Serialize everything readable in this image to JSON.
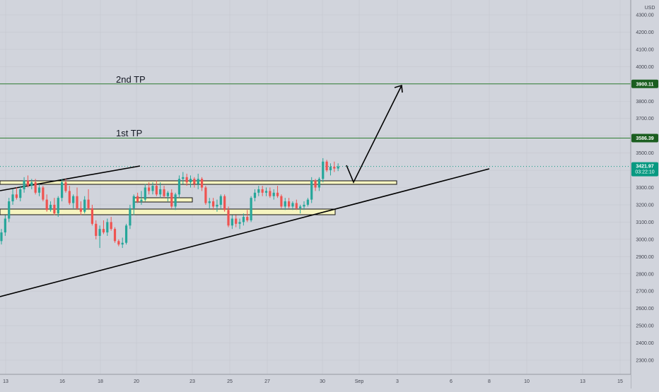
{
  "currency_label": "USD",
  "price_axis": {
    "ticks": [
      "4300.00",
      "4200.00",
      "4100.00",
      "4000.00",
      "3900.00",
      "3800.00",
      "3700.00",
      "3600.00",
      "3500.00",
      "3400.00",
      "3300.00",
      "3200.00",
      "3100.00",
      "3000.00",
      "2900.00",
      "2800.00",
      "2700.00",
      "2600.00",
      "2500.00",
      "2400.00",
      "2300.00"
    ]
  },
  "time_axis": {
    "labels": [
      "13",
      "16",
      "18",
      "20",
      "23",
      "25",
      "27",
      "30",
      "Sep",
      "3",
      "6",
      "8",
      "10",
      "13",
      "15"
    ]
  },
  "annotations": {
    "second_tp_label": "2nd TP",
    "first_tp_label": "1st TP"
  },
  "price_badges": {
    "second_tp_price": "3900.11",
    "first_tp_price": "3586.39",
    "last_price": "3421.97",
    "countdown": "03:22:10"
  },
  "colors": {
    "background": "#d1d4dc",
    "bull": "#26a69a",
    "bear": "#ef5350",
    "zone_fill": "#f6f4c0",
    "target_line": "#2e7d32",
    "badge_bg": "#1b5e20",
    "last_price_bg": "#089981"
  },
  "chart_data": {
    "type": "candlestick",
    "ylim": [
      2250,
      4370
    ],
    "horizontal_levels": [
      {
        "label": "2nd TP",
        "price": 3900.11
      },
      {
        "label": "1st TP",
        "price": 3586.39
      }
    ],
    "last_price": 3421.97,
    "candles": [
      {
        "o": 2990,
        "h": 3060,
        "l": 2970,
        "c": 3040
      },
      {
        "o": 3040,
        "h": 3140,
        "l": 3020,
        "c": 3120
      },
      {
        "o": 3120,
        "h": 3240,
        "l": 3100,
        "c": 3220
      },
      {
        "o": 3220,
        "h": 3290,
        "l": 3200,
        "c": 3260
      },
      {
        "o": 3260,
        "h": 3300,
        "l": 3230,
        "c": 3240
      },
      {
        "o": 3240,
        "h": 3310,
        "l": 3220,
        "c": 3290
      },
      {
        "o": 3290,
        "h": 3360,
        "l": 3270,
        "c": 3340
      },
      {
        "o": 3340,
        "h": 3370,
        "l": 3300,
        "c": 3310
      },
      {
        "o": 3310,
        "h": 3350,
        "l": 3290,
        "c": 3330
      },
      {
        "o": 3330,
        "h": 3350,
        "l": 3260,
        "c": 3270
      },
      {
        "o": 3270,
        "h": 3320,
        "l": 3250,
        "c": 3300
      },
      {
        "o": 3300,
        "h": 3310,
        "l": 3220,
        "c": 3230
      },
      {
        "o": 3230,
        "h": 3260,
        "l": 3160,
        "c": 3170
      },
      {
        "o": 3170,
        "h": 3220,
        "l": 3160,
        "c": 3200
      },
      {
        "o": 3200,
        "h": 3240,
        "l": 3140,
        "c": 3150
      },
      {
        "o": 3150,
        "h": 3250,
        "l": 3130,
        "c": 3240
      },
      {
        "o": 3240,
        "h": 3350,
        "l": 3220,
        "c": 3330
      },
      {
        "o": 3330,
        "h": 3350,
        "l": 3270,
        "c": 3280
      },
      {
        "o": 3280,
        "h": 3310,
        "l": 3200,
        "c": 3210
      },
      {
        "o": 3210,
        "h": 3260,
        "l": 3180,
        "c": 3250
      },
      {
        "o": 3250,
        "h": 3300,
        "l": 3170,
        "c": 3180
      },
      {
        "o": 3180,
        "h": 3220,
        "l": 3140,
        "c": 3160
      },
      {
        "o": 3160,
        "h": 3250,
        "l": 3150,
        "c": 3230
      },
      {
        "o": 3230,
        "h": 3290,
        "l": 3170,
        "c": 3180
      },
      {
        "o": 3180,
        "h": 3200,
        "l": 3080,
        "c": 3090
      },
      {
        "o": 3090,
        "h": 3110,
        "l": 3000,
        "c": 3020
      },
      {
        "o": 3020,
        "h": 3080,
        "l": 2950,
        "c": 3060
      },
      {
        "o": 3060,
        "h": 3110,
        "l": 3030,
        "c": 3040
      },
      {
        "o": 3040,
        "h": 3120,
        "l": 3020,
        "c": 3100
      },
      {
        "o": 3100,
        "h": 3130,
        "l": 3050,
        "c": 3060
      },
      {
        "o": 3060,
        "h": 3070,
        "l": 2980,
        "c": 2990
      },
      {
        "o": 2990,
        "h": 3000,
        "l": 2960,
        "c": 2970
      },
      {
        "o": 2970,
        "h": 3010,
        "l": 2950,
        "c": 2980
      },
      {
        "o": 2980,
        "h": 3090,
        "l": 2970,
        "c": 3080
      },
      {
        "o": 3080,
        "h": 3200,
        "l": 3060,
        "c": 3180
      },
      {
        "o": 3180,
        "h": 3260,
        "l": 3140,
        "c": 3250
      },
      {
        "o": 3250,
        "h": 3270,
        "l": 3210,
        "c": 3220
      },
      {
        "o": 3220,
        "h": 3280,
        "l": 3200,
        "c": 3230
      },
      {
        "o": 3230,
        "h": 3320,
        "l": 3220,
        "c": 3300
      },
      {
        "o": 3300,
        "h": 3330,
        "l": 3260,
        "c": 3280
      },
      {
        "o": 3280,
        "h": 3330,
        "l": 3260,
        "c": 3310
      },
      {
        "o": 3310,
        "h": 3340,
        "l": 3250,
        "c": 3260
      },
      {
        "o": 3260,
        "h": 3330,
        "l": 3240,
        "c": 3290
      },
      {
        "o": 3290,
        "h": 3310,
        "l": 3240,
        "c": 3250
      },
      {
        "o": 3250,
        "h": 3280,
        "l": 3220,
        "c": 3270
      },
      {
        "o": 3270,
        "h": 3290,
        "l": 3180,
        "c": 3190
      },
      {
        "o": 3190,
        "h": 3270,
        "l": 3170,
        "c": 3260
      },
      {
        "o": 3260,
        "h": 3370,
        "l": 3240,
        "c": 3350
      },
      {
        "o": 3350,
        "h": 3390,
        "l": 3320,
        "c": 3360
      },
      {
        "o": 3360,
        "h": 3380,
        "l": 3310,
        "c": 3330
      },
      {
        "o": 3330,
        "h": 3370,
        "l": 3300,
        "c": 3350
      },
      {
        "o": 3350,
        "h": 3360,
        "l": 3300,
        "c": 3320
      },
      {
        "o": 3320,
        "h": 3380,
        "l": 3290,
        "c": 3350
      },
      {
        "o": 3350,
        "h": 3360,
        "l": 3280,
        "c": 3300
      },
      {
        "o": 3300,
        "h": 3310,
        "l": 3200,
        "c": 3210
      },
      {
        "o": 3210,
        "h": 3240,
        "l": 3180,
        "c": 3220
      },
      {
        "o": 3220,
        "h": 3240,
        "l": 3170,
        "c": 3190
      },
      {
        "o": 3190,
        "h": 3230,
        "l": 3160,
        "c": 3200
      },
      {
        "o": 3200,
        "h": 3260,
        "l": 3180,
        "c": 3250
      },
      {
        "o": 3250,
        "h": 3260,
        "l": 3160,
        "c": 3170
      },
      {
        "o": 3170,
        "h": 3190,
        "l": 3070,
        "c": 3080
      },
      {
        "o": 3080,
        "h": 3140,
        "l": 3060,
        "c": 3120
      },
      {
        "o": 3120,
        "h": 3140,
        "l": 3070,
        "c": 3090
      },
      {
        "o": 3090,
        "h": 3120,
        "l": 3060,
        "c": 3100
      },
      {
        "o": 3100,
        "h": 3150,
        "l": 3080,
        "c": 3130
      },
      {
        "o": 3130,
        "h": 3170,
        "l": 3100,
        "c": 3110
      },
      {
        "o": 3110,
        "h": 3250,
        "l": 3100,
        "c": 3240
      },
      {
        "o": 3240,
        "h": 3290,
        "l": 3220,
        "c": 3270
      },
      {
        "o": 3270,
        "h": 3310,
        "l": 3250,
        "c": 3290
      },
      {
        "o": 3290,
        "h": 3310,
        "l": 3250,
        "c": 3270
      },
      {
        "o": 3270,
        "h": 3300,
        "l": 3250,
        "c": 3280
      },
      {
        "o": 3280,
        "h": 3300,
        "l": 3240,
        "c": 3250
      },
      {
        "o": 3250,
        "h": 3290,
        "l": 3230,
        "c": 3270
      },
      {
        "o": 3270,
        "h": 3310,
        "l": 3240,
        "c": 3250
      },
      {
        "o": 3250,
        "h": 3260,
        "l": 3180,
        "c": 3190
      },
      {
        "o": 3190,
        "h": 3240,
        "l": 3170,
        "c": 3220
      },
      {
        "o": 3220,
        "h": 3240,
        "l": 3180,
        "c": 3190
      },
      {
        "o": 3190,
        "h": 3220,
        "l": 3170,
        "c": 3210
      },
      {
        "o": 3210,
        "h": 3230,
        "l": 3170,
        "c": 3180
      },
      {
        "o": 3180,
        "h": 3200,
        "l": 3150,
        "c": 3190
      },
      {
        "o": 3190,
        "h": 3220,
        "l": 3170,
        "c": 3200
      },
      {
        "o": 3200,
        "h": 3240,
        "l": 3190,
        "c": 3230
      },
      {
        "o": 3230,
        "h": 3360,
        "l": 3210,
        "c": 3340
      },
      {
        "o": 3340,
        "h": 3350,
        "l": 3280,
        "c": 3300
      },
      {
        "o": 3300,
        "h": 3360,
        "l": 3280,
        "c": 3350
      },
      {
        "o": 3350,
        "h": 3470,
        "l": 3330,
        "c": 3450
      },
      {
        "o": 3450,
        "h": 3460,
        "l": 3390,
        "c": 3400
      },
      {
        "o": 3400,
        "h": 3440,
        "l": 3370,
        "c": 3420
      },
      {
        "o": 3420,
        "h": 3450,
        "l": 3390,
        "c": 3410
      },
      {
        "o": 3410,
        "h": 3440,
        "l": 3395,
        "c": 3421.97
      }
    ]
  }
}
